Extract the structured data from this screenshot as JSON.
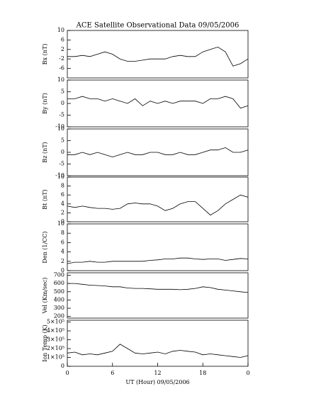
{
  "chart_data": [
    {
      "type": "line",
      "title": "ACE Satellite Observational Data   09/05/2006",
      "ylabel": "Bx (nT)",
      "color": "#000000",
      "x": [
        0,
        1,
        2,
        3,
        4,
        5,
        6,
        7,
        8,
        9,
        10,
        11,
        12,
        13,
        14,
        15,
        16,
        17,
        18,
        19,
        20,
        21,
        22,
        23,
        24
      ],
      "values": [
        -1,
        -1,
        -0.5,
        -1,
        0,
        1,
        0,
        -2,
        -3,
        -3,
        -2.5,
        -2,
        -2,
        -2,
        -1,
        -0.5,
        -1,
        -1,
        1,
        2,
        3,
        1,
        -5,
        -4,
        -2
      ],
      "xlim": [
        0,
        24
      ],
      "ylim": [
        -10,
        10
      ],
      "yticks": [
        -6,
        -2,
        2,
        6,
        10
      ]
    },
    {
      "type": "line",
      "ylabel": "By (nT)",
      "color": "#000000",
      "x": [
        0,
        1,
        2,
        3,
        4,
        5,
        6,
        7,
        8,
        9,
        10,
        11,
        12,
        13,
        14,
        15,
        16,
        17,
        18,
        19,
        20,
        21,
        22,
        23,
        24
      ],
      "values": [
        2,
        2,
        3,
        2,
        2,
        1,
        2,
        1,
        0,
        2,
        -1,
        1,
        0,
        1,
        0,
        1,
        1,
        1,
        0,
        2,
        2,
        3,
        2,
        -2,
        -1
      ],
      "xlim": [
        0,
        24
      ],
      "ylim": [
        -10,
        10
      ],
      "yticks": [
        -10,
        -5,
        0,
        5,
        10
      ]
    },
    {
      "type": "line",
      "ylabel": "Bz (nT)",
      "color": "#000000",
      "x": [
        0,
        1,
        2,
        3,
        4,
        5,
        6,
        7,
        8,
        9,
        10,
        11,
        12,
        13,
        14,
        15,
        16,
        17,
        18,
        19,
        20,
        21,
        22,
        23,
        24
      ],
      "values": [
        -1,
        -1,
        0,
        -1,
        0,
        -1,
        -2,
        -1,
        0,
        -1,
        -1,
        0,
        0,
        -1,
        -1,
        0,
        -1,
        -1,
        0,
        1,
        1,
        2,
        0,
        0,
        1
      ],
      "xlim": [
        0,
        24
      ],
      "ylim": [
        -10,
        10
      ],
      "yticks": [
        -10,
        -5,
        0,
        5,
        10
      ]
    },
    {
      "type": "line",
      "ylabel": "Bt (nT)",
      "color": "#000000",
      "x": [
        0,
        1,
        2,
        3,
        4,
        5,
        6,
        7,
        8,
        9,
        10,
        11,
        12,
        13,
        14,
        15,
        16,
        17,
        18,
        19,
        20,
        21,
        22,
        23,
        24
      ],
      "values": [
        3.5,
        3.2,
        3.5,
        3.2,
        3,
        3,
        2.8,
        3,
        4,
        4.2,
        4,
        4,
        3.5,
        2.5,
        3,
        4,
        4.5,
        4.5,
        3,
        1.5,
        2.5,
        4,
        5,
        6,
        5.5
      ],
      "xlim": [
        0,
        24
      ],
      "ylim": [
        0,
        10
      ],
      "yticks": [
        0,
        2,
        4,
        6,
        8,
        10
      ]
    },
    {
      "type": "line",
      "ylabel": "Den (1/CC)",
      "color": "#000000",
      "x": [
        0,
        1,
        2,
        3,
        4,
        5,
        6,
        7,
        8,
        9,
        10,
        11,
        12,
        13,
        14,
        15,
        16,
        17,
        18,
        19,
        20,
        21,
        22,
        23,
        24
      ],
      "values": [
        1.5,
        1.8,
        1.8,
        2,
        1.8,
        1.8,
        2,
        2,
        2,
        2,
        2,
        2.2,
        2.3,
        2.5,
        2.5,
        2.7,
        2.7,
        2.5,
        2.4,
        2.5,
        2.5,
        2.2,
        2.4,
        2.6,
        2.5
      ],
      "xlim": [
        0,
        24
      ],
      "ylim": [
        0,
        10
      ],
      "yticks": [
        0,
        2,
        4,
        6,
        8,
        10
      ]
    },
    {
      "type": "line",
      "ylabel": "Vel (Km/sec)",
      "color": "#000000",
      "x": [
        0,
        1,
        2,
        3,
        4,
        5,
        6,
        7,
        8,
        9,
        10,
        11,
        12,
        13,
        14,
        15,
        16,
        17,
        18,
        19,
        20,
        21,
        22,
        23,
        24
      ],
      "values": [
        600,
        600,
        590,
        580,
        575,
        570,
        560,
        560,
        545,
        540,
        540,
        535,
        530,
        530,
        530,
        525,
        530,
        540,
        560,
        550,
        530,
        520,
        510,
        500,
        490
      ],
      "xlim": [
        0,
        24
      ],
      "ylim": [
        180,
        730
      ],
      "yticks": [
        200,
        300,
        400,
        500,
        600,
        700
      ]
    },
    {
      "type": "line",
      "ylabel": "Ion Temp (K)",
      "xlabel": "UT (Hour)  09/05/2006",
      "color": "#000000",
      "x": [
        0,
        1,
        2,
        3,
        4,
        5,
        6,
        7,
        8,
        9,
        10,
        11,
        12,
        13,
        14,
        15,
        16,
        17,
        18,
        19,
        20,
        21,
        22,
        23,
        24
      ],
      "values": [
        150000,
        160000,
        130000,
        140000,
        130000,
        150000,
        170000,
        250000,
        200000,
        150000,
        140000,
        150000,
        160000,
        140000,
        170000,
        180000,
        170000,
        160000,
        130000,
        140000,
        130000,
        120000,
        110000,
        100000,
        120000
      ],
      "xlim": [
        0,
        24
      ],
      "ylim": [
        0,
        520000
      ],
      "yticks": [
        0,
        {
          "value": 100000,
          "label": "1×10⁵"
        },
        {
          "value": 200000,
          "label": "2×10⁵"
        },
        {
          "value": 300000,
          "label": "3×10⁵"
        },
        {
          "value": 400000,
          "label": "4×10⁵"
        },
        {
          "value": 500000,
          "label": "5×10⁵"
        }
      ],
      "xticks": [
        0,
        6,
        12,
        18,
        {
          "value": 24,
          "label": "0"
        }
      ]
    }
  ]
}
